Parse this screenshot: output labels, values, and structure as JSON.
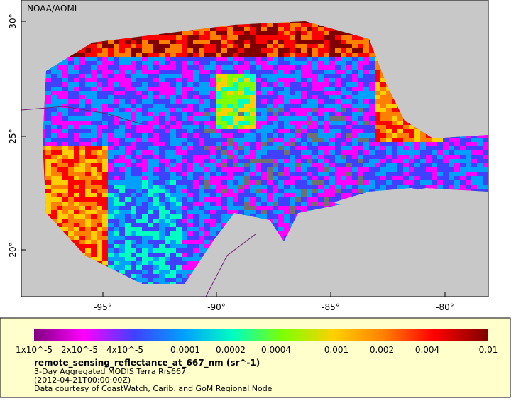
{
  "map": {
    "credit": "NOAA/AOML",
    "lat_labels": [
      "30°",
      "25°",
      "20°"
    ],
    "lon_labels": [
      "-95°",
      "-90°",
      "-85°",
      "-80°"
    ]
  },
  "legend": {
    "ticks": [
      "1x10^-5",
      "2x10^-5",
      "4x10^-5",
      "0.0001",
      "0.0002",
      "0.0004",
      "0.001",
      "0.002",
      "0.004",
      "0.01"
    ],
    "title": "remote_sensing_reflectance_at_667_nm (sr^-1)",
    "lines": [
      "3-Day Aggregated MODIS Terra Rrs667",
      "(2012-04-21T00:00:00Z)",
      "Data courtesy of CoastWatch, Carib. and GoM Regional Node"
    ]
  }
}
